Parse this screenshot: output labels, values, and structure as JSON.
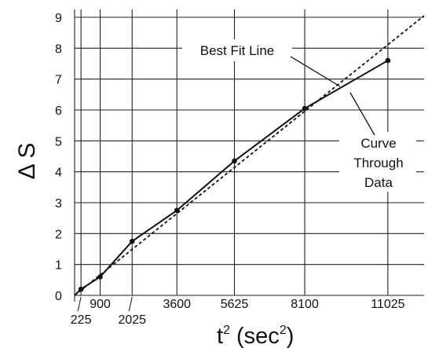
{
  "chart_data": {
    "type": "line",
    "title": "",
    "xlabel": {
      "base": "t",
      "sup": "2",
      "rest": " (sec",
      "sup2": "2",
      "close": ")"
    },
    "ylabel": "Δ S",
    "x": [
      225,
      900,
      2025,
      3600,
      5625,
      8100,
      11025
    ],
    "x_tick_labels": [
      "225",
      "900",
      "2025",
      "3600",
      "5625",
      "8100",
      "11025"
    ],
    "y_ticks": [
      0,
      1,
      2,
      3,
      4,
      5,
      6,
      7,
      8,
      9
    ],
    "xlim": [
      0,
      12300
    ],
    "ylim": [
      0,
      9
    ],
    "grid": true,
    "series": [
      {
        "values": [
          0.2,
          0.6,
          1.75,
          2.75,
          4.35,
          6.05,
          7.6
        ]
      }
    ],
    "best_fit": {
      "x": [
        0,
        12300
      ],
      "y": [
        0,
        9.05
      ]
    },
    "annotations": [
      {
        "lines": [
          "Best Fit Line"
        ]
      },
      {
        "lines": [
          "Curve",
          "Through",
          "Data"
        ]
      }
    ]
  }
}
